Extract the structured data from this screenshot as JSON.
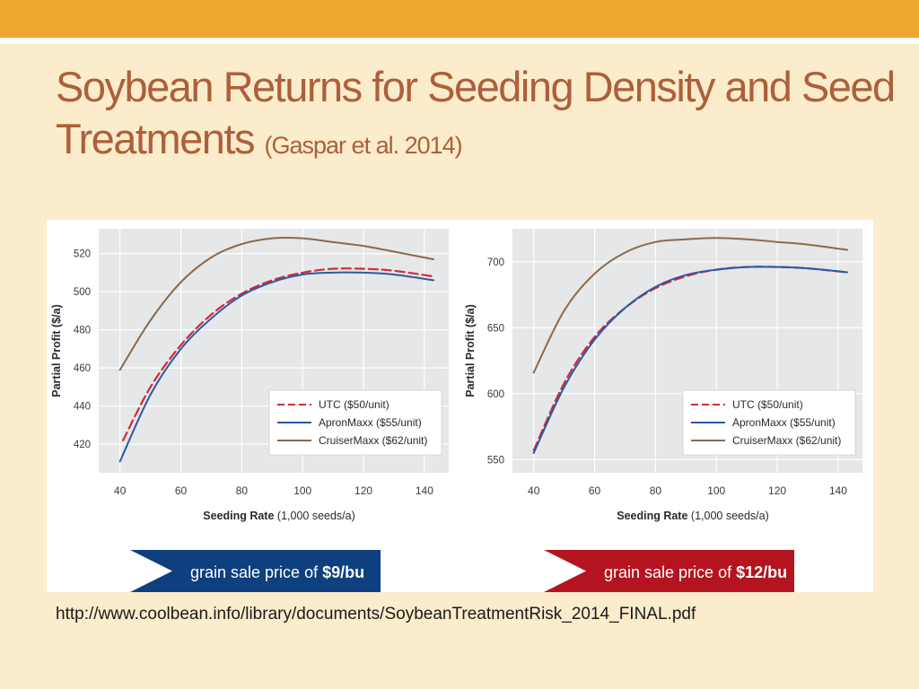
{
  "slide": {
    "title": "Soybean Returns for Seeding Density and Seed Treatments",
    "citation": "(Gaspar et al. 2014)",
    "url": "http://www.coolbean.info/library/documents/SoybeanTreatmentRisk_2014_FINAL.pdf"
  },
  "colors": {
    "top_bar": "#eea631",
    "background": "#fbeccb",
    "title": "#ad5f3b",
    "plot_bg": "#e6e7e8",
    "utc": "#d42a36",
    "apronmaxx": "#2a5aa5",
    "cruisermaxx": "#8a6a4e",
    "banner_left": "#0e3f7e",
    "banner_right": "#b4141f"
  },
  "chart_data": [
    {
      "type": "line",
      "xlabel": "Seeding Rate",
      "xlabel_unit": "(1,000 seeds/a)",
      "ylabel": "Partial Profit ($/a)",
      "xlim": [
        33,
        148
      ],
      "ylim": [
        405,
        533
      ],
      "xticks": [
        40,
        60,
        80,
        100,
        120,
        140
      ],
      "yticks": [
        420,
        440,
        460,
        480,
        500,
        520
      ],
      "grid": true,
      "legend_position": "bottom-right",
      "banner": {
        "prefix": "grain sale price of ",
        "value": "$9/bu"
      },
      "series": [
        {
          "name": "UTC ($50/unit)",
          "style": "dashed",
          "color": "#d42a36",
          "x": [
            41,
            50,
            60,
            70,
            80,
            90,
            100,
            110,
            120,
            130,
            143
          ],
          "y": [
            422,
            450,
            472,
            488,
            499,
            506,
            510,
            512,
            512,
            511,
            508
          ]
        },
        {
          "name": "ApronMaxx ($55/unit)",
          "style": "solid",
          "color": "#2a5aa5",
          "x": [
            40,
            50,
            60,
            70,
            80,
            90,
            100,
            110,
            120,
            130,
            143
          ],
          "y": [
            411,
            446,
            470,
            486,
            498,
            505,
            509,
            510,
            510,
            509,
            506
          ]
        },
        {
          "name": "CruiserMaxx ($62/unit)",
          "style": "solid",
          "color": "#8a6a4e",
          "x": [
            40,
            50,
            60,
            70,
            80,
            90,
            100,
            110,
            120,
            130,
            143
          ],
          "y": [
            459,
            485,
            505,
            518,
            525,
            528,
            528,
            526,
            524,
            521,
            517
          ]
        }
      ]
    },
    {
      "type": "line",
      "xlabel": "Seeding Rate",
      "xlabel_unit": "(1,000 seeds/a)",
      "ylabel": "Partial Profit ($/a)",
      "xlim": [
        33,
        148
      ],
      "ylim": [
        540,
        725
      ],
      "xticks": [
        40,
        60,
        80,
        100,
        120,
        140
      ],
      "yticks": [
        550,
        600,
        650,
        700
      ],
      "grid": true,
      "legend_position": "bottom-right",
      "banner": {
        "prefix": "grain sale price of ",
        "value": "$12/bu"
      },
      "series": [
        {
          "name": "UTC ($50/unit)",
          "style": "dashed",
          "color": "#d42a36",
          "x": [
            40,
            50,
            60,
            70,
            80,
            90,
            100,
            110,
            120,
            130,
            143
          ],
          "y": [
            557,
            608,
            643,
            665,
            680,
            689,
            694,
            696,
            696,
            695,
            692
          ]
        },
        {
          "name": "ApronMaxx ($55/unit)",
          "style": "solid",
          "color": "#2a5aa5",
          "x": [
            40,
            50,
            60,
            70,
            80,
            90,
            100,
            110,
            120,
            130,
            143
          ],
          "y": [
            555,
            605,
            641,
            665,
            681,
            690,
            694,
            696,
            696,
            695,
            692
          ]
        },
        {
          "name": "CruiserMaxx ($62/unit)",
          "style": "solid",
          "color": "#8a6a4e",
          "x": [
            40,
            50,
            60,
            70,
            80,
            90,
            100,
            110,
            120,
            130,
            143
          ],
          "y": [
            616,
            663,
            691,
            707,
            715,
            717,
            718,
            717,
            715,
            713,
            709
          ]
        }
      ]
    }
  ]
}
